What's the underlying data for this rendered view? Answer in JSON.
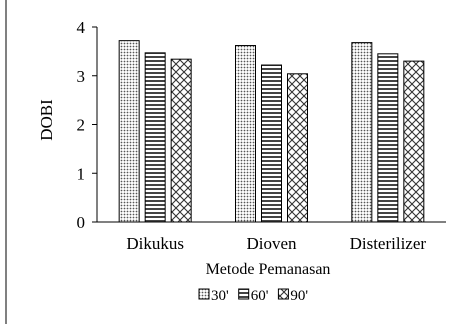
{
  "chart_data": {
    "type": "bar",
    "title": "",
    "xlabel": "Metode Pemanasan",
    "ylabel": "DOBI",
    "categories": [
      "Dikukus",
      "Dioven",
      "Disterilizer"
    ],
    "series": [
      {
        "name": "30'",
        "values": [
          3.72,
          3.62,
          3.68
        ],
        "pattern": "dots"
      },
      {
        "name": "60'",
        "values": [
          3.47,
          3.22,
          3.45
        ],
        "pattern": "horizontal-lines"
      },
      {
        "name": "90'",
        "values": [
          3.34,
          3.04,
          3.3
        ],
        "pattern": "diagonal-crosshatch"
      }
    ],
    "ylim": [
      0,
      4
    ],
    "yticks": [
      "0",
      "1",
      "2",
      "3",
      "4"
    ],
    "grid": false,
    "legend_position": "bottom"
  }
}
